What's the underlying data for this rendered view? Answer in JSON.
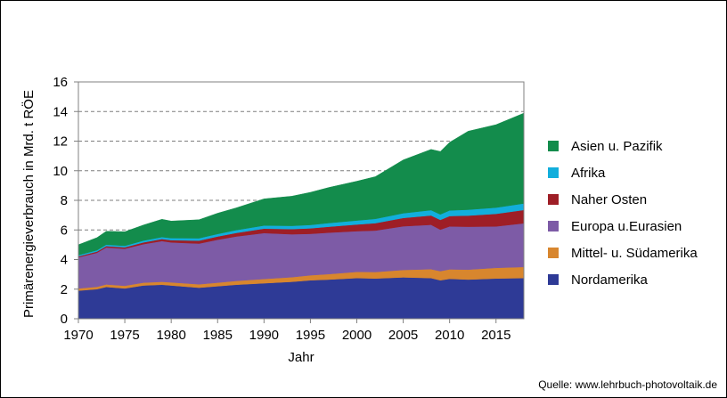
{
  "chart_data": {
    "type": "area",
    "stacked": true,
    "xlabel": "Jahr",
    "ylabel": "Primärenergieverbrauch in Mrd. t RÖE",
    "xlim": [
      1970,
      2018
    ],
    "ylim": [
      0,
      16
    ],
    "xticks": [
      1970,
      1975,
      1980,
      1985,
      1990,
      1995,
      2000,
      2005,
      2010,
      2015
    ],
    "yticks": [
      0,
      2,
      4,
      6,
      8,
      10,
      12,
      14,
      16
    ],
    "grid": "horizontal-dashed",
    "legend_position": "right",
    "source": "Quelle: www.lehrbuch-photovoltaik.de",
    "x": [
      1970,
      1972,
      1973,
      1975,
      1977,
      1979,
      1980,
      1983,
      1985,
      1987,
      1990,
      1993,
      1995,
      1997,
      2000,
      2002,
      2005,
      2008,
      2009,
      2010,
      2012,
      2015,
      2018
    ],
    "series": [
      {
        "name": "Nordamerika",
        "color": "#2E3A96",
        "values": [
          1.9,
          2.0,
          2.15,
          2.05,
          2.25,
          2.3,
          2.25,
          2.1,
          2.2,
          2.3,
          2.4,
          2.5,
          2.6,
          2.65,
          2.75,
          2.72,
          2.8,
          2.75,
          2.6,
          2.7,
          2.65,
          2.72,
          2.75
        ]
      },
      {
        "name": "Mittel- u. Südamerika",
        "color": "#D8862E",
        "values": [
          0.15,
          0.16,
          0.17,
          0.18,
          0.19,
          0.2,
          0.21,
          0.23,
          0.24,
          0.26,
          0.29,
          0.31,
          0.34,
          0.37,
          0.42,
          0.44,
          0.5,
          0.6,
          0.62,
          0.64,
          0.67,
          0.72,
          0.75
        ]
      },
      {
        "name": "Europa u.Eurasien",
        "color": "#7D5BA6",
        "values": [
          2.1,
          2.3,
          2.5,
          2.5,
          2.6,
          2.75,
          2.7,
          2.75,
          2.9,
          3.0,
          3.1,
          2.9,
          2.8,
          2.8,
          2.75,
          2.8,
          2.95,
          3.0,
          2.8,
          2.9,
          2.9,
          2.8,
          2.95
        ]
      },
      {
        "name": "Naher Osten",
        "color": "#9E1E26",
        "values": [
          0.07,
          0.08,
          0.09,
          0.1,
          0.12,
          0.14,
          0.15,
          0.2,
          0.22,
          0.24,
          0.3,
          0.35,
          0.37,
          0.4,
          0.45,
          0.5,
          0.56,
          0.63,
          0.66,
          0.7,
          0.75,
          0.85,
          0.9
        ]
      },
      {
        "name": "Afrika",
        "color": "#12AEDC",
        "values": [
          0.08,
          0.09,
          0.1,
          0.1,
          0.12,
          0.13,
          0.14,
          0.16,
          0.17,
          0.19,
          0.21,
          0.22,
          0.23,
          0.25,
          0.27,
          0.29,
          0.32,
          0.36,
          0.37,
          0.38,
          0.4,
          0.42,
          0.44
        ]
      },
      {
        "name": "Asien u. Pazifik",
        "color": "#138C4C",
        "values": [
          0.7,
          0.85,
          0.9,
          0.95,
          1.05,
          1.2,
          1.15,
          1.25,
          1.4,
          1.5,
          1.8,
          2.0,
          2.2,
          2.4,
          2.65,
          2.85,
          3.6,
          4.1,
          4.25,
          4.6,
          5.3,
          5.6,
          6.1
        ]
      }
    ]
  }
}
